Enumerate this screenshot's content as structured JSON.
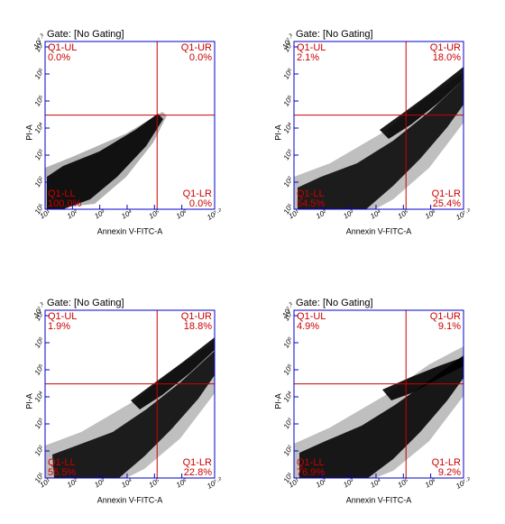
{
  "chart_data": [
    {
      "type": "scatter",
      "title": "Gate: [No Gating]",
      "x_label": "Annexin V-FITC-A",
      "y_label": "PI-A",
      "log_scale": true,
      "xlim": [
        10,
        15848931.92
      ],
      "ylim": [
        10,
        15848931.92
      ],
      "xticks": [
        {
          "value": 10,
          "label": "10¹"
        },
        {
          "value": 100,
          "label": "10²"
        },
        {
          "value": 1000,
          "label": "10³"
        },
        {
          "value": 10000,
          "label": "10⁴"
        },
        {
          "value": 100000,
          "label": "10⁵"
        },
        {
          "value": 1000000,
          "label": "10⁶"
        },
        {
          "value": 15848931.92,
          "label": "10⁷·²"
        }
      ],
      "yticks": [
        {
          "value": 10,
          "label": "10¹"
        },
        {
          "value": 100,
          "label": "10²"
        },
        {
          "value": 1000,
          "label": "10³"
        },
        {
          "value": 10000,
          "label": "10⁴"
        },
        {
          "value": 100000,
          "label": "10⁵"
        },
        {
          "value": 1000000,
          "label": "10⁶"
        },
        {
          "value": 10000000,
          "label": "10⁷"
        },
        {
          "value": 15848931.92,
          "label": "10⁷·²"
        }
      ],
      "quadrant_x": 125000,
      "quadrant_y": 30000,
      "color": "#000000",
      "quadrant_color": "#cc0000",
      "quadrant_names": [
        "Q1-UL",
        "Q1-UR",
        "Q1-LL",
        "Q1-LR"
      ],
      "values": [
        0.0,
        0.0,
        100.0,
        0.0
      ],
      "value_labels": [
        "0.0%",
        "0.0%",
        "100.0%",
        "0.0%"
      ]
    },
    {
      "type": "scatter",
      "title": "Gate: [No Gating]",
      "x_label": "Annexin V-FITC-A",
      "y_label": "PI-A",
      "log_scale": true,
      "xlim": [
        10,
        15848931.92
      ],
      "ylim": [
        10,
        15848931.92
      ],
      "xticks": [
        {
          "value": 10,
          "label": "10¹"
        },
        {
          "value": 100,
          "label": "10²"
        },
        {
          "value": 1000,
          "label": "10³"
        },
        {
          "value": 10000,
          "label": "10⁴"
        },
        {
          "value": 100000,
          "label": "10⁵"
        },
        {
          "value": 1000000,
          "label": "10⁶"
        },
        {
          "value": 15848931.92,
          "label": "10⁷·²"
        }
      ],
      "yticks": [
        {
          "value": 10,
          "label": "10¹"
        },
        {
          "value": 100,
          "label": "10²"
        },
        {
          "value": 1000,
          "label": "10³"
        },
        {
          "value": 10000,
          "label": "10⁴"
        },
        {
          "value": 100000,
          "label": "10⁵"
        },
        {
          "value": 1000000,
          "label": "10⁶"
        },
        {
          "value": 10000000,
          "label": "10⁷"
        },
        {
          "value": 15848931.92,
          "label": "10⁷·²"
        }
      ],
      "quadrant_x": 125000,
      "quadrant_y": 30000,
      "color": "#000000",
      "quadrant_color": "#cc0000",
      "quadrant_names": [
        "Q1-UL",
        "Q1-UR",
        "Q1-LL",
        "Q1-LR"
      ],
      "values": [
        2.1,
        18.0,
        54.5,
        25.4
      ],
      "value_labels": [
        "2.1%",
        "18.0%",
        "54.5%",
        "25.4%"
      ]
    },
    {
      "type": "scatter",
      "title": "Gate: [No Gating]",
      "x_label": "Annexin V-FITC-A",
      "y_label": "PI-A",
      "log_scale": true,
      "xlim": [
        10,
        15848931.92
      ],
      "ylim": [
        10,
        15848931.92
      ],
      "xticks": [
        {
          "value": 10,
          "label": "10¹"
        },
        {
          "value": 100,
          "label": "10²"
        },
        {
          "value": 1000,
          "label": "10³"
        },
        {
          "value": 10000,
          "label": "10⁴"
        },
        {
          "value": 100000,
          "label": "10⁵"
        },
        {
          "value": 1000000,
          "label": "10⁶"
        },
        {
          "value": 15848931.92,
          "label": "10⁷·²"
        }
      ],
      "yticks": [
        {
          "value": 10,
          "label": "10¹"
        },
        {
          "value": 100,
          "label": "10²"
        },
        {
          "value": 1000,
          "label": "10³"
        },
        {
          "value": 10000,
          "label": "10⁴"
        },
        {
          "value": 100000,
          "label": "10⁵"
        },
        {
          "value": 1000000,
          "label": "10⁶"
        },
        {
          "value": 10000000,
          "label": "10⁷"
        },
        {
          "value": 15848931.92,
          "label": "10⁷·²"
        }
      ],
      "quadrant_x": 125000,
      "quadrant_y": 30000,
      "color": "#000000",
      "quadrant_color": "#cc0000",
      "quadrant_names": [
        "Q1-UL",
        "Q1-UR",
        "Q1-LL",
        "Q1-LR"
      ],
      "values": [
        1.9,
        18.8,
        56.5,
        22.8
      ],
      "value_labels": [
        "1.9%",
        "18.8%",
        "56.5%",
        "22.8%"
      ]
    },
    {
      "type": "scatter",
      "title": "Gate: [No Gating]",
      "x_label": "Annexin V-FITC-A",
      "y_label": "PI-A",
      "log_scale": true,
      "xlim": [
        10,
        15848931.92
      ],
      "ylim": [
        10,
        15848931.92
      ],
      "xticks": [
        {
          "value": 10,
          "label": "10¹"
        },
        {
          "value": 100,
          "label": "10²"
        },
        {
          "value": 1000,
          "label": "10³"
        },
        {
          "value": 10000,
          "label": "10⁴"
        },
        {
          "value": 100000,
          "label": "10⁵"
        },
        {
          "value": 1000000,
          "label": "10⁶"
        },
        {
          "value": 15848931.92,
          "label": "10⁷·²"
        }
      ],
      "yticks": [
        {
          "value": 10,
          "label": "10¹"
        },
        {
          "value": 100,
          "label": "10²"
        },
        {
          "value": 1000,
          "label": "10³"
        },
        {
          "value": 10000,
          "label": "10⁴"
        },
        {
          "value": 100000,
          "label": "10⁵"
        },
        {
          "value": 1000000,
          "label": "10⁶"
        },
        {
          "value": 10000000,
          "label": "10⁷"
        },
        {
          "value": 15848931.92,
          "label": "10⁷·²"
        }
      ],
      "quadrant_x": 125000,
      "quadrant_y": 30000,
      "color": "#000000",
      "quadrant_color": "#cc0000",
      "quadrant_names": [
        "Q1-UL",
        "Q1-UR",
        "Q1-LL",
        "Q1-LR"
      ],
      "values": [
        4.9,
        9.1,
        76.9,
        9.2
      ],
      "value_labels": [
        "4.9%",
        "9.1%",
        "76.9%",
        "9.2%"
      ]
    }
  ]
}
